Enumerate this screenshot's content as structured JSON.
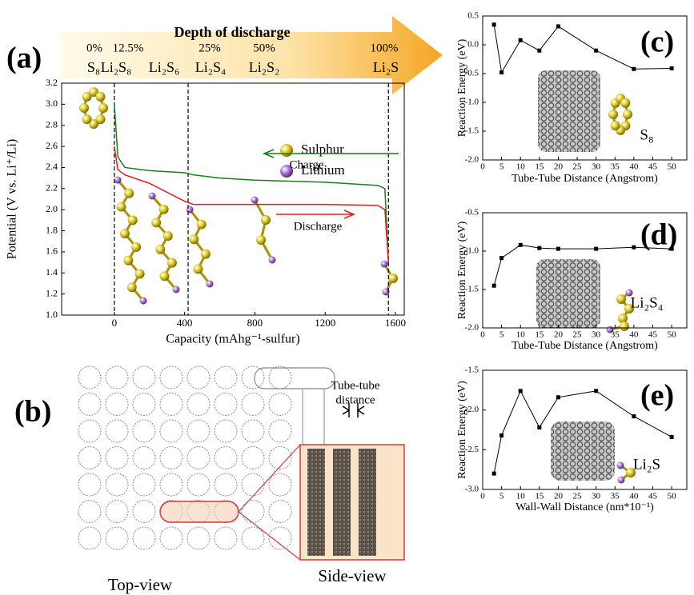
{
  "panels": [
    "(a)",
    "(b)",
    "(c)",
    "(d)",
    "(e)"
  ],
  "chart_data": [
    {
      "type": "line",
      "header": "Depth of discharge",
      "stages": [
        {
          "percent": "0%",
          "species": "S₈"
        },
        {
          "percent": "12.5%",
          "species": "Li₂S₈"
        },
        {
          "species": "Li₂S₆"
        },
        {
          "percent": "25%",
          "species": "Li₂S₄"
        },
        {
          "percent": "50%",
          "species": "Li₂S₂"
        },
        {
          "percent": "100%",
          "species": "Li₂S"
        }
      ],
      "legend": [
        {
          "name": "Sulphur",
          "color": "#e3cf2a"
        },
        {
          "name": "Lithium",
          "color": "#b07cd8"
        }
      ],
      "xlabel": "Capacity (mAhg⁻¹-sulfur)",
      "ylabel": "Potential (V vs. Li⁺/Li)",
      "x": [
        0,
        20,
        60,
        200,
        400,
        450,
        600,
        800,
        1200,
        1500,
        1540,
        1560
      ],
      "series": [
        {
          "name": "Charge",
          "color": "#1a7f1a",
          "values": [
            3.0,
            2.5,
            2.4,
            2.37,
            2.35,
            2.33,
            2.3,
            2.28,
            2.26,
            2.23,
            2.2,
            1.5
          ]
        },
        {
          "name": "Discharge",
          "color": "#e02020",
          "values": [
            2.6,
            2.38,
            2.33,
            2.25,
            2.08,
            2.05,
            2.05,
            2.05,
            2.05,
            2.04,
            2.0,
            1.5
          ]
        }
      ],
      "xlim": [
        -300,
        1650
      ],
      "xticks": [
        0,
        400,
        800,
        1200,
        1600
      ],
      "ylim": [
        1,
        3.2
      ],
      "yticks": [
        {
          "value": 1,
          "label": "1.0"
        },
        1.2,
        1.4,
        1.6,
        1.8,
        {
          "value": 2,
          "label": "2.0"
        },
        2.2,
        2.4,
        2.6,
        2.8,
        {
          "value": 3,
          "label": "3.0"
        },
        3.2
      ],
      "vlines": [
        0,
        420,
        1560
      ]
    },
    {
      "type": "line",
      "markers": true,
      "xlabel": "Tube-Tube Distance (Angstrom)",
      "ylabel": "Reaction Energy (eV)",
      "annotation": "S₈",
      "x": [
        3,
        5,
        10,
        15,
        20,
        30,
        40,
        50
      ],
      "series": [
        {
          "color": "#000000",
          "values": [
            0.35,
            -0.48,
            0.08,
            -0.1,
            0.32,
            -0.1,
            -0.42,
            -0.41
          ]
        }
      ],
      "xlim": [
        0,
        54
      ],
      "xticks": [
        0,
        5,
        10,
        15,
        20,
        25,
        30,
        35,
        40,
        45,
        50
      ],
      "ylim": [
        -2,
        0.5
      ],
      "yticks": [
        {
          "value": -2,
          "label": "-2.0"
        },
        -1.5,
        {
          "value": -1,
          "label": "-1.0"
        },
        -0.5,
        {
          "value": 0,
          "label": "0.0"
        },
        0.5
      ]
    },
    {
      "type": "line",
      "markers": true,
      "xlabel": "Tube-Tube Distance (Angstrom)",
      "ylabel": "Reaction Energy (eV)",
      "annotation": "Li₂S₄",
      "x": [
        3,
        5,
        10,
        15,
        20,
        30,
        40,
        50
      ],
      "series": [
        {
          "color": "#000000",
          "values": [
            -1.45,
            -1.09,
            -0.92,
            -0.96,
            -0.97,
            -0.97,
            -0.95,
            -0.97
          ]
        }
      ],
      "xlim": [
        0,
        54
      ],
      "xticks": [
        0,
        5,
        10,
        15,
        20,
        25,
        30,
        35,
        40,
        45,
        50
      ],
      "ylim": [
        -2,
        -0.5
      ],
      "yticks": [
        {
          "value": -2,
          "label": "-2.0"
        },
        -1.5,
        {
          "value": -1,
          "label": "-1.0"
        },
        -0.5
      ]
    },
    {
      "type": "line",
      "markers": true,
      "xlabel": "Wall-Wall Distance (nm*10⁻¹)",
      "ylabel": "Reaction Energy (eV)",
      "annotation": "Li₂S",
      "x": [
        3,
        5,
        10,
        15,
        20,
        30,
        40,
        50
      ],
      "series": [
        {
          "color": "#000000",
          "values": [
            -2.8,
            -2.32,
            -1.76,
            -2.22,
            -1.84,
            -1.76,
            -2.08,
            -2.34
          ]
        }
      ],
      "xlim": [
        0,
        54
      ],
      "xticks": [
        0,
        5,
        10,
        15,
        20,
        25,
        30,
        35,
        40,
        45,
        50
      ],
      "ylim": [
        -3,
        -1.5
      ],
      "yticks": [
        {
          "value": -3,
          "label": "-3.0"
        },
        -2.5,
        {
          "value": -2,
          "label": "-2.0"
        },
        -1.5
      ]
    }
  ],
  "diagram": {
    "top_view": "Top-view",
    "side_view": "Side-view",
    "distance_label": [
      "Tube-tube",
      "distance"
    ]
  }
}
